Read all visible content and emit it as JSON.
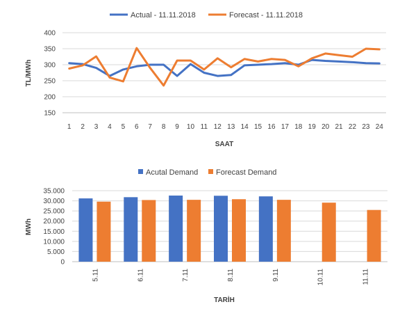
{
  "colors": {
    "actual": "#4472C4",
    "forecast": "#ED7D31",
    "grid": "#d9d9d9",
    "axis": "#bfbfbf",
    "text": "#404040"
  },
  "chart_data": [
    {
      "type": "line",
      "title": "",
      "xlabel": "SAAT",
      "ylabel": "TL/MWh",
      "ylim": [
        150,
        400
      ],
      "yticks": [
        "150",
        "200",
        "250",
        "300",
        "350",
        "400"
      ],
      "grid": true,
      "legend_position": "top",
      "x": [
        "1",
        "2",
        "3",
        "4",
        "5",
        "6",
        "7",
        "8",
        "9",
        "10",
        "11",
        "12",
        "13",
        "14",
        "15",
        "16",
        "17",
        "18",
        "19",
        "20",
        "21",
        "22",
        "23",
        "24"
      ],
      "series": [
        {
          "name": "Actual - 11.11.2018",
          "color": "#4472C4",
          "values": [
            305,
            302,
            290,
            265,
            285,
            295,
            300,
            300,
            265,
            302,
            275,
            265,
            268,
            298,
            300,
            302,
            305,
            300,
            315,
            312,
            310,
            308,
            305,
            304
          ]
        },
        {
          "name": "Forecast - 11.11.2018",
          "color": "#ED7D31",
          "values": [
            288,
            298,
            326,
            260,
            248,
            352,
            290,
            235,
            313,
            313,
            285,
            320,
            292,
            318,
            310,
            318,
            315,
            295,
            320,
            335,
            330,
            325,
            350,
            348
          ]
        }
      ]
    },
    {
      "type": "bar",
      "title": "",
      "xlabel": "TARİH",
      "ylabel": "MWh",
      "ylim": [
        0,
        35000
      ],
      "yticks": [
        "0",
        "5.000",
        "10.000",
        "15.000",
        "20.000",
        "25.000",
        "30.000",
        "35.000"
      ],
      "grid": true,
      "legend_position": "top",
      "categories": [
        "5.11",
        "6.11",
        "7.11",
        "8.11",
        "9.11",
        "10.11",
        "11.11"
      ],
      "series": [
        {
          "name": "Acutal Demand",
          "color": "#4472C4",
          "values": [
            31200,
            31800,
            32600,
            32500,
            32200,
            null,
            null
          ]
        },
        {
          "name": "Forecast Demand",
          "color": "#ED7D31",
          "values": [
            29600,
            30400,
            30500,
            30800,
            30500,
            29100,
            25500
          ]
        }
      ]
    }
  ]
}
